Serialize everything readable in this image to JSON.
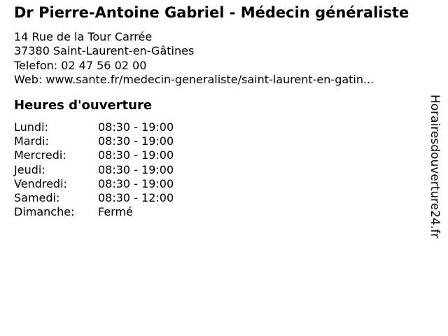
{
  "header": {
    "title": "Dr Pierre-Antoine Gabriel - Médecin généraliste",
    "address_line1": "14 Rue de la Tour Carrée",
    "address_line2": "37380 Saint-Laurent-en-Gâtines",
    "phone_line": "Telefon: 02 47 56 02 00",
    "web_line": "Web: www.sante.fr/medecin-generaliste/saint-laurent-en-gatin..."
  },
  "hours": {
    "heading": "Heures d'ouverture",
    "rows": [
      {
        "day": "Lundi:",
        "time": "08:30 - 19:00"
      },
      {
        "day": "Mardi:",
        "time": "08:30 - 19:00"
      },
      {
        "day": "Mercredi:",
        "time": "08:30 - 19:00"
      },
      {
        "day": "Jeudi:",
        "time": "08:30 - 19:00"
      },
      {
        "day": "Vendredi:",
        "time": "08:30 - 19:00"
      },
      {
        "day": "Samedi:",
        "time": "08:30 - 12:00"
      },
      {
        "day": "Dimanche:",
        "time": "Fermé"
      }
    ]
  },
  "branding": {
    "site": "Horairesdouverture24.fr"
  },
  "colors": {
    "text": "#000000",
    "background": "#ffffff"
  }
}
